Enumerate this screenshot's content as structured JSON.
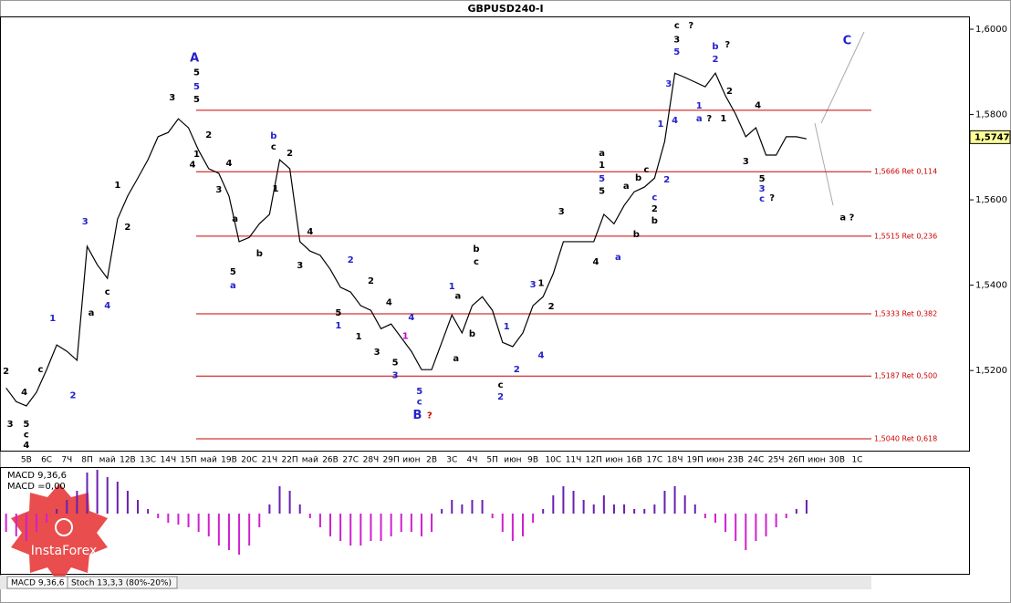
{
  "chart_data": {
    "type": "line",
    "title": "GBPUSD240-I",
    "x": [
      -1,
      -0.5,
      0,
      0.5,
      1,
      1.5,
      2,
      2.5,
      3,
      3.5,
      4,
      4.5,
      5,
      5.5,
      6,
      6.5,
      7,
      7.5,
      8,
      8.5,
      9,
      9.5,
      10,
      10.5,
      11,
      11.5,
      12,
      12.5,
      13,
      13.5,
      14,
      14.5,
      15,
      15.5,
      16,
      16.5,
      17,
      17.5,
      18,
      18.5,
      19,
      19.5,
      20,
      20.5,
      21,
      21.5,
      22,
      22.5,
      23,
      23.5,
      24,
      24.5,
      25,
      25.5,
      26,
      26.5,
      27,
      27.5,
      28,
      28.5,
      29,
      29.5,
      30,
      30.5,
      31,
      31.5,
      32,
      32.5,
      33,
      33.5,
      34,
      34.5,
      35,
      35.5,
      36,
      36.5,
      37,
      37.5,
      38,
      38.5
    ],
    "values": [
      1.5159,
      1.5127,
      1.5117,
      1.5149,
      1.5202,
      1.526,
      1.5245,
      1.5224,
      1.5491,
      1.5448,
      1.5416,
      1.5555,
      1.5609,
      1.5651,
      1.5694,
      1.5748,
      1.5758,
      1.579,
      1.5769,
      1.5716,
      1.5673,
      1.5662,
      1.5609,
      1.5502,
      1.5512,
      1.5544,
      1.5566,
      1.5694,
      1.5673,
      1.5502,
      1.548,
      1.547,
      1.5437,
      1.5395,
      1.5384,
      1.5352,
      1.5341,
      1.5298,
      1.5309,
      1.5277,
      1.5245,
      1.5202,
      1.5202,
      1.5266,
      1.533,
      1.5288,
      1.5352,
      1.5373,
      1.5341,
      1.5266,
      1.5256,
      1.5288,
      1.5352,
      1.5373,
      1.5427,
      1.5502,
      1.5502,
      1.5502,
      1.5502,
      1.5566,
      1.5544,
      1.5587,
      1.5619,
      1.563,
      1.5651,
      1.5737,
      1.5897,
      1.5887,
      1.5876,
      1.5865,
      1.5897,
      1.5844,
      1.5801,
      1.5748,
      1.5769,
      1.5705,
      1.5705,
      1.5748,
      1.5748,
      1.5743
    ],
    "color": "#000000",
    "xlim": [
      -1.3,
      41.7
    ],
    "ylim": [
      1.501,
      1.603
    ],
    "yticks": [
      {
        "value": 1.6,
        "label": "1,6000"
      },
      {
        "value": 1.58,
        "label": "1,5800"
      },
      {
        "value": 1.56,
        "label": "1,5600"
      },
      {
        "value": 1.54,
        "label": "1,5400"
      },
      {
        "value": 1.52,
        "label": "1,5200"
      }
    ],
    "date_labels": [
      "5В",
      "6С",
      "7Ч",
      "8П",
      "май",
      "12В",
      "13С",
      "14Ч",
      "15П",
      "май",
      "19В",
      "20С",
      "21Ч",
      "22П",
      "май",
      "26В",
      "27С",
      "28Ч",
      "29П",
      "июн",
      "2В",
      "3С",
      "4Ч",
      "5П",
      "июн",
      "9В",
      "10С",
      "11Ч",
      "12П",
      "июн",
      "16В",
      "17С",
      "18Ч",
      "19П",
      "июн",
      "23В",
      "24С",
      "25Ч",
      "26П",
      "июн",
      "30В",
      "1С"
    ],
    "current_price": {
      "value": 1.5747,
      "label": "1,5747"
    },
    "fib_levels": [
      1.581,
      {
        "value": 1.5666,
        "label": "1,5666 Ret 0,114"
      },
      {
        "value": 1.5515,
        "label": "1,5515 Ret 0,236"
      },
      {
        "value": 1.5333,
        "label": "1,5333 Ret 0,382"
      },
      {
        "value": 1.5187,
        "label": "1,5187 Ret 0,500"
      },
      {
        "value": 1.504,
        "label": "1,5040 Ret 0,618"
      }
    ],
    "fib_color": "#cc0000",
    "macd": {
      "label": "MACD 9,36,6",
      "value_label": "MACD =0,00",
      "ylim": [
        -6.5,
        5
      ],
      "positive_color": "#6a1fb0",
      "negative_color": "#d020d0",
      "values": [
        -2,
        -2.5,
        -3,
        -2,
        -1,
        0.5,
        1.5,
        2.5,
        4.5,
        4.8,
        4,
        3.5,
        2.5,
        1.5,
        0.5,
        -0.5,
        -1,
        -1.2,
        -1.5,
        -2,
        -2.5,
        -3.5,
        -4,
        -4.5,
        -3.5,
        -1.5,
        1,
        3,
        2.5,
        1,
        -0.5,
        -1.5,
        -2.5,
        -3,
        -3.5,
        -3.5,
        -3,
        -3,
        -2.5,
        -2,
        -2,
        -2.5,
        -2,
        0.5,
        1.5,
        1,
        1.5,
        1.5,
        -0.5,
        -2,
        -3,
        -2.5,
        -1,
        0.5,
        2,
        3,
        2.5,
        1.5,
        1,
        2,
        1,
        1,
        0.5,
        0.5,
        1,
        2.5,
        3,
        2,
        1,
        -0.5,
        -1,
        -2,
        -3,
        -4,
        -3,
        -2.5,
        -1.5,
        -0.5,
        0.5,
        1.5
      ]
    },
    "tabs": [
      "MACD 9,36,6",
      "Stoch 13,3,3 (80%-20%)"
    ],
    "logo": "InstaForex",
    "annotations": [
      {
        "text": "2",
        "color": "#000000",
        "x": -1.0,
        "y": 1.5198
      },
      {
        "text": "3",
        "color": "#000000",
        "x": -0.8,
        "y": 1.5074
      },
      {
        "text": "4",
        "color": "#000000",
        "x": -0.1,
        "y": 1.5149
      },
      {
        "text": "5",
        "color": "#000000",
        "x": 0.0,
        "y": 1.5074
      },
      {
        "text": "c",
        "color": "#000000",
        "x": 0.0,
        "y": 1.505
      },
      {
        "text": "4",
        "color": "#000000",
        "x": 0.0,
        "y": 1.5025
      },
      {
        "text": "c",
        "color": "#000000",
        "x": 0.7,
        "y": 1.5202
      },
      {
        "text": "2",
        "color": "#2222cc",
        "x": 2.3,
        "y": 1.5142
      },
      {
        "text": "1",
        "color": "#2222cc",
        "x": 1.3,
        "y": 1.5322
      },
      {
        "text": "3",
        "color": "#2222cc",
        "x": 2.9,
        "y": 1.5549
      },
      {
        "text": "a",
        "color": "#000000",
        "x": 3.2,
        "y": 1.5335
      },
      {
        "text": "c",
        "color": "#000000",
        "x": 4.0,
        "y": 1.5384
      },
      {
        "text": "4",
        "color": "#2222cc",
        "x": 4.0,
        "y": 1.5352
      },
      {
        "text": "1",
        "color": "#000000",
        "x": 4.5,
        "y": 1.5634
      },
      {
        "text": "2",
        "color": "#000000",
        "x": 5.0,
        "y": 1.5536
      },
      {
        "text": "3",
        "color": "#000000",
        "x": 7.2,
        "y": 1.584
      },
      {
        "text": "A",
        "color": "#2222cc",
        "x": 8.3,
        "y": 1.5932,
        "big": true
      },
      {
        "text": "5",
        "color": "#000000",
        "x": 8.4,
        "y": 1.5899
      },
      {
        "text": "5",
        "color": "#2222cc",
        "x": 8.4,
        "y": 1.5865
      },
      {
        "text": "5",
        "color": "#000000",
        "x": 8.4,
        "y": 1.5835
      },
      {
        "text": "2",
        "color": "#000000",
        "x": 9.0,
        "y": 1.5752
      },
      {
        "text": "1",
        "color": "#000000",
        "x": 8.4,
        "y": 1.5707
      },
      {
        "text": "4",
        "color": "#000000",
        "x": 8.2,
        "y": 1.5683
      },
      {
        "text": "3",
        "color": "#000000",
        "x": 9.5,
        "y": 1.5624
      },
      {
        "text": "4",
        "color": "#000000",
        "x": 10.0,
        "y": 1.5686
      },
      {
        "text": "a",
        "color": "#000000",
        "x": 10.3,
        "y": 1.5555
      },
      {
        "text": "5",
        "color": "#000000",
        "x": 10.2,
        "y": 1.5431
      },
      {
        "text": "a",
        "color": "#2222cc",
        "x": 10.2,
        "y": 1.5399
      },
      {
        "text": "b",
        "color": "#000000",
        "x": 11.5,
        "y": 1.5474
      },
      {
        "text": "b",
        "color": "#2222cc",
        "x": 12.2,
        "y": 1.575
      },
      {
        "text": "c",
        "color": "#000000",
        "x": 12.2,
        "y": 1.5724
      },
      {
        "text": "1",
        "color": "#000000",
        "x": 12.3,
        "y": 1.5626
      },
      {
        "text": "2",
        "color": "#000000",
        "x": 13.0,
        "y": 1.5709
      },
      {
        "text": "3",
        "color": "#000000",
        "x": 13.5,
        "y": 1.5446
      },
      {
        "text": "4",
        "color": "#000000",
        "x": 14.0,
        "y": 1.5525
      },
      {
        "text": "2",
        "color": "#2222cc",
        "x": 16.0,
        "y": 1.5459
      },
      {
        "text": "5",
        "color": "#000000",
        "x": 15.4,
        "y": 1.5335
      },
      {
        "text": "1",
        "color": "#2222cc",
        "x": 15.4,
        "y": 1.5305
      },
      {
        "text": "1",
        "color": "#000000",
        "x": 16.4,
        "y": 1.5279
      },
      {
        "text": "2",
        "color": "#000000",
        "x": 17.0,
        "y": 1.541
      },
      {
        "text": "3",
        "color": "#000000",
        "x": 17.3,
        "y": 1.5243
      },
      {
        "text": "4",
        "color": "#000000",
        "x": 17.9,
        "y": 1.536
      },
      {
        "text": "5",
        "color": "#000000",
        "x": 18.2,
        "y": 1.5219
      },
      {
        "text": "3",
        "color": "#2222cc",
        "x": 18.2,
        "y": 1.5189
      },
      {
        "text": "4",
        "color": "#2222cc",
        "x": 19.0,
        "y": 1.5324
      },
      {
        "text": "1",
        "color": "#cc00cc",
        "x": 18.7,
        "y": 1.528
      },
      {
        "text": "5",
        "color": "#2222cc",
        "x": 19.4,
        "y": 1.5151
      },
      {
        "text": "c",
        "color": "#2222cc",
        "x": 19.4,
        "y": 1.5127
      },
      {
        "text": "B",
        "color": "#2222cc",
        "x": 19.3,
        "y": 1.5095,
        "big": true
      },
      {
        "text": "?",
        "color": "#cc0000",
        "x": 19.9,
        "y": 1.5095
      },
      {
        "text": "1",
        "color": "#2222cc",
        "x": 21.0,
        "y": 1.5397
      },
      {
        "text": "a",
        "color": "#000000",
        "x": 21.3,
        "y": 1.5375
      },
      {
        "text": "a",
        "color": "#000000",
        "x": 21.2,
        "y": 1.5228
      },
      {
        "text": "b",
        "color": "#000000",
        "x": 22.0,
        "y": 1.5286
      },
      {
        "text": "b",
        "color": "#000000",
        "x": 22.2,
        "y": 1.5485
      },
      {
        "text": "c",
        "color": "#000000",
        "x": 22.2,
        "y": 1.5455
      },
      {
        "text": "1",
        "color": "#2222cc",
        "x": 23.7,
        "y": 1.5303
      },
      {
        "text": "2",
        "color": "#2222cc",
        "x": 24.2,
        "y": 1.5202
      },
      {
        "text": "c",
        "color": "#000000",
        "x": 23.4,
        "y": 1.5166
      },
      {
        "text": "2",
        "color": "#2222cc",
        "x": 23.4,
        "y": 1.5138
      },
      {
        "text": "3",
        "color": "#2222cc",
        "x": 25.0,
        "y": 1.5401
      },
      {
        "text": "4",
        "color": "#2222cc",
        "x": 25.4,
        "y": 1.5236
      },
      {
        "text": "1",
        "color": "#000000",
        "x": 25.4,
        "y": 1.5405
      },
      {
        "text": "2",
        "color": "#000000",
        "x": 25.9,
        "y": 1.535
      },
      {
        "text": "3",
        "color": "#000000",
        "x": 26.4,
        "y": 1.5572
      },
      {
        "text": "4",
        "color": "#000000",
        "x": 28.1,
        "y": 1.5455
      },
      {
        "text": "a",
        "color": "#000000",
        "x": 28.4,
        "y": 1.5709
      },
      {
        "text": "1",
        "color": "#000000",
        "x": 28.4,
        "y": 1.5681
      },
      {
        "text": "5",
        "color": "#2222cc",
        "x": 28.4,
        "y": 1.5649
      },
      {
        "text": "5",
        "color": "#000000",
        "x": 28.4,
        "y": 1.5621
      },
      {
        "text": "a",
        "color": "#2222cc",
        "x": 29.2,
        "y": 1.5465
      },
      {
        "text": "b",
        "color": "#000000",
        "x": 30.1,
        "y": 1.5519
      },
      {
        "text": "a",
        "color": "#000000",
        "x": 29.6,
        "y": 1.5632
      },
      {
        "text": "b",
        "color": "#000000",
        "x": 30.2,
        "y": 1.5651
      },
      {
        "text": "c",
        "color": "#000000",
        "x": 30.6,
        "y": 1.5671
      },
      {
        "text": "c",
        "color": "#2222cc",
        "x": 31.0,
        "y": 1.5606
      },
      {
        "text": "2",
        "color": "#000000",
        "x": 31.0,
        "y": 1.5579
      },
      {
        "text": "b",
        "color": "#000000",
        "x": 31.0,
        "y": 1.5551
      },
      {
        "text": "2",
        "color": "#2222cc",
        "x": 31.6,
        "y": 1.5647
      },
      {
        "text": "1",
        "color": "#2222cc",
        "x": 31.3,
        "y": 1.5778
      },
      {
        "text": "3",
        "color": "#2222cc",
        "x": 31.7,
        "y": 1.5872
      },
      {
        "text": "4",
        "color": "#2222cc",
        "x": 32.0,
        "y": 1.5786
      },
      {
        "text": "c",
        "color": "#000000",
        "x": 32.1,
        "y": 1.6009
      },
      {
        "text": "3",
        "color": "#000000",
        "x": 32.1,
        "y": 1.5976
      },
      {
        "text": "5",
        "color": "#2222cc",
        "x": 32.1,
        "y": 1.5947
      },
      {
        "text": "?",
        "color": "#000000",
        "x": 32.8,
        "y": 1.6009
      },
      {
        "text": "b",
        "color": "#2222cc",
        "x": 34.0,
        "y": 1.5959
      },
      {
        "text": "2",
        "color": "#2222cc",
        "x": 34.0,
        "y": 1.5929
      },
      {
        "text": "?",
        "color": "#000000",
        "x": 34.6,
        "y": 1.5964
      },
      {
        "text": "1",
        "color": "#2222cc",
        "x": 33.2,
        "y": 1.582
      },
      {
        "text": "a",
        "color": "#2222cc",
        "x": 33.2,
        "y": 1.579
      },
      {
        "text": "?",
        "color": "#000000",
        "x": 33.7,
        "y": 1.579
      },
      {
        "text": "1",
        "color": "#000000",
        "x": 34.4,
        "y": 1.579
      },
      {
        "text": "2",
        "color": "#000000",
        "x": 34.7,
        "y": 1.5855
      },
      {
        "text": "4",
        "color": "#000000",
        "x": 36.1,
        "y": 1.5822
      },
      {
        "text": "3",
        "color": "#000000",
        "x": 35.5,
        "y": 1.569
      },
      {
        "text": "5",
        "color": "#000000",
        "x": 36.3,
        "y": 1.5649
      },
      {
        "text": "3",
        "color": "#2222cc",
        "x": 36.3,
        "y": 1.5626
      },
      {
        "text": "c",
        "color": "#2222cc",
        "x": 36.3,
        "y": 1.5602
      },
      {
        "text": "?",
        "color": "#000000",
        "x": 36.8,
        "y": 1.5604
      },
      {
        "text": "C",
        "color": "#2222cc",
        "x": 40.5,
        "y": 1.5972,
        "big": true
      },
      {
        "text": "a ?",
        "color": "#000000",
        "x": 40.5,
        "y": 1.5559
      }
    ]
  }
}
